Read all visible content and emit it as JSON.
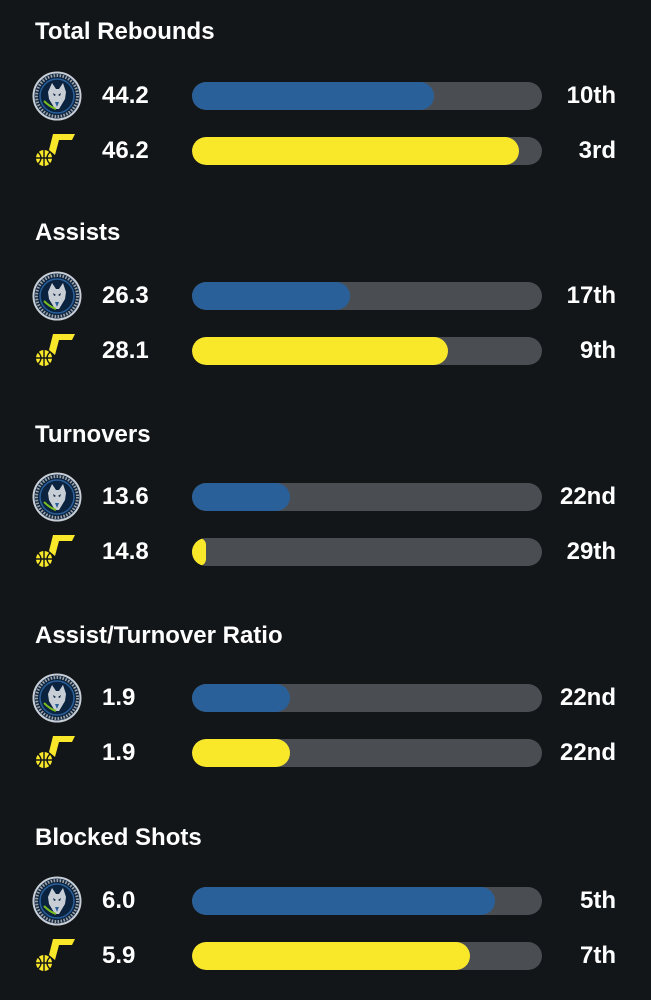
{
  "colors": {
    "background": "#121619",
    "track": "#4a4e53",
    "wolves": "#2a6099",
    "jazz": "#f9e72a"
  },
  "teams": {
    "wolves": {
      "icon": "timberwolves-logo-icon"
    },
    "jazz": {
      "icon": "jazz-logo-icon"
    }
  },
  "stats": [
    {
      "title": "Total Rebounds",
      "rows": [
        {
          "team": "wolves",
          "value": "44.2",
          "rank": "10th",
          "fill": 0.69
        },
        {
          "team": "jazz",
          "value": "46.2",
          "rank": "3rd",
          "fill": 0.935
        }
      ]
    },
    {
      "title": "Assists",
      "rows": [
        {
          "team": "wolves",
          "value": "26.3",
          "rank": "17th",
          "fill": 0.45
        },
        {
          "team": "jazz",
          "value": "28.1",
          "rank": "9th",
          "fill": 0.73
        }
      ]
    },
    {
      "title": "Turnovers",
      "rows": [
        {
          "team": "wolves",
          "value": "13.6",
          "rank": "22nd",
          "fill": 0.28
        },
        {
          "team": "jazz",
          "value": "14.8",
          "rank": "29th",
          "fill": 0.04
        }
      ]
    },
    {
      "title": "Assist/Turnover Ratio",
      "rows": [
        {
          "team": "wolves",
          "value": "1.9",
          "rank": "22nd",
          "fill": 0.28
        },
        {
          "team": "jazz",
          "value": "1.9",
          "rank": "22nd",
          "fill": 0.28
        }
      ]
    },
    {
      "title": "Blocked Shots",
      "rows": [
        {
          "team": "wolves",
          "value": "6.0",
          "rank": "5th",
          "fill": 0.865
        },
        {
          "team": "jazz",
          "value": "5.9",
          "rank": "7th",
          "fill": 0.795
        }
      ]
    }
  ]
}
